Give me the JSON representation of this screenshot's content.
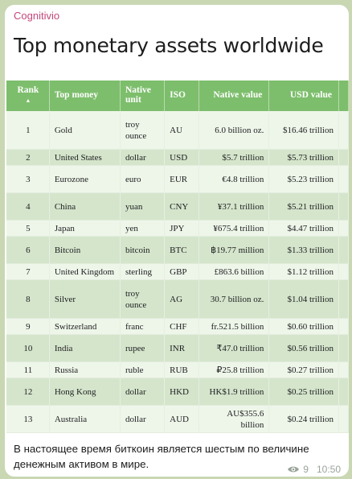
{
  "channel": {
    "name": "Cognitivio"
  },
  "post": {
    "title": "Top monetary assets worldwide",
    "caption": "В настоящее время биткоин является шестым по величине денежным активом в мире.",
    "views": "9",
    "time": "10:50"
  },
  "table": {
    "headers": {
      "rank": "Rank",
      "money": "Top money",
      "unit": "Native unit",
      "iso": "ISO",
      "native": "Native value",
      "usd": "USD value"
    },
    "sort_indicator": "▲",
    "rows": [
      {
        "rank": "1",
        "money": "Gold",
        "unit": "troy ounce",
        "iso": "AU",
        "native": "6.0 billion oz.",
        "usd": "$16.46 trillion"
      },
      {
        "rank": "2",
        "money": "United States",
        "unit": "dollar",
        "iso": "USD",
        "native": "$5.7 trillion",
        "usd": "$5.73 trillion"
      },
      {
        "rank": "3",
        "money": "Eurozone",
        "unit": "euro",
        "iso": "EUR",
        "native": "€4.8 trillion",
        "usd": "$5.23 trillion"
      },
      {
        "rank": "4",
        "money": "China",
        "unit": "yuan",
        "iso": "CNY",
        "native": "¥37.1 trillion",
        "usd": "$5.21 trillion"
      },
      {
        "rank": "5",
        "money": "Japan",
        "unit": "yen",
        "iso": "JPY",
        "native": "¥675.4 trillion",
        "usd": "$4.47 trillion"
      },
      {
        "rank": "6",
        "money": "Bitcoin",
        "unit": "bitcoin",
        "iso": "BTC",
        "native": "฿19.77 million",
        "usd": "$1.33 trillion"
      },
      {
        "rank": "7",
        "money": "United Kingdom",
        "unit": "sterling",
        "iso": "GBP",
        "native": "£863.6 billion",
        "usd": "$1.12 trillion"
      },
      {
        "rank": "8",
        "money": "Silver",
        "unit": "troy ounce",
        "iso": "AG",
        "native": "30.7 billion oz.",
        "usd": "$1.04 trillion"
      },
      {
        "rank": "9",
        "money": "Switzerland",
        "unit": "franc",
        "iso": "CHF",
        "native": "fr.521.5 billion",
        "usd": "$0.60 trillion"
      },
      {
        "rank": "10",
        "money": "India",
        "unit": "rupee",
        "iso": "INR",
        "native": "₹47.0 trillion",
        "usd": "$0.56 trillion"
      },
      {
        "rank": "11",
        "money": "Russia",
        "unit": "ruble",
        "iso": "RUB",
        "native": "₽25.8 trillion",
        "usd": "$0.27 trillion"
      },
      {
        "rank": "12",
        "money": "Hong Kong",
        "unit": "dollar",
        "iso": "HKD",
        "native": "HK$1.9 trillion",
        "usd": "$0.25 trillion"
      },
      {
        "rank": "13",
        "money": "Australia",
        "unit": "dollar",
        "iso": "AUD",
        "native": "AU$355.6 billion",
        "usd": "$0.24 trillion"
      }
    ]
  },
  "colors": {
    "header": "#7dbe6c",
    "row_light": "#eef6ea",
    "row_dark": "#d4e5cc",
    "channel_name": "#c2477a"
  }
}
